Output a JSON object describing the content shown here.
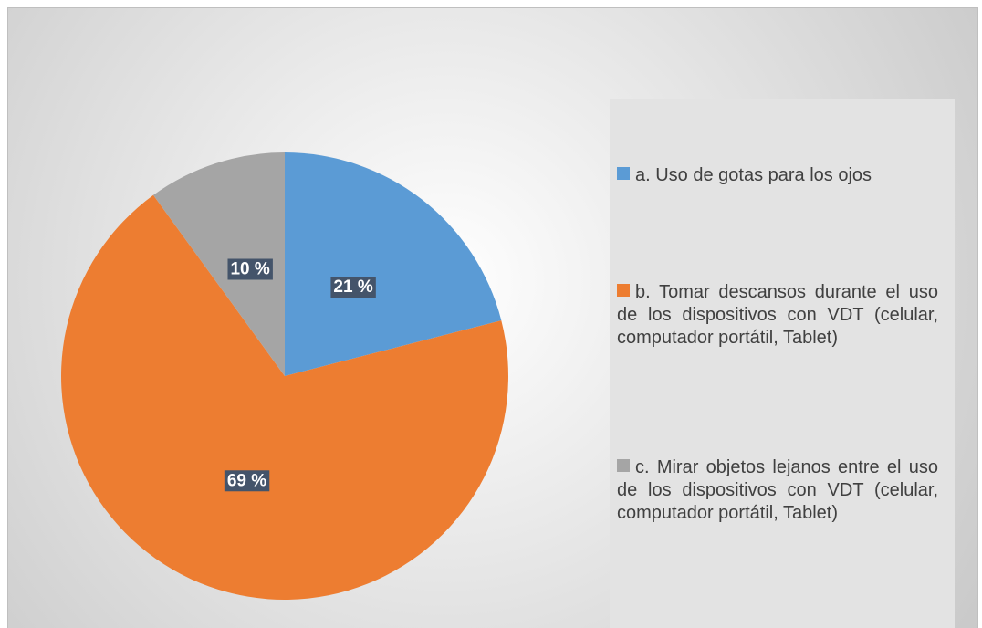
{
  "chart_data": {
    "type": "pie",
    "categories": [
      "a. Uso de gotas para los ojos",
      "b. Tomar descansos durante el uso de los dispositivos con VDT (celular, computador portátil, Tablet)",
      "c. Mirar objetos lejanos entre el uso de los dispositivos con VDT (celular, computador portátil, Tablet)"
    ],
    "values": [
      21,
      69,
      10
    ],
    "value_labels": [
      "21 %",
      "69 %",
      "10 %"
    ],
    "colors": [
      "#5b9bd5",
      "#ed7d31",
      "#a5a5a5"
    ],
    "legend": "right"
  }
}
